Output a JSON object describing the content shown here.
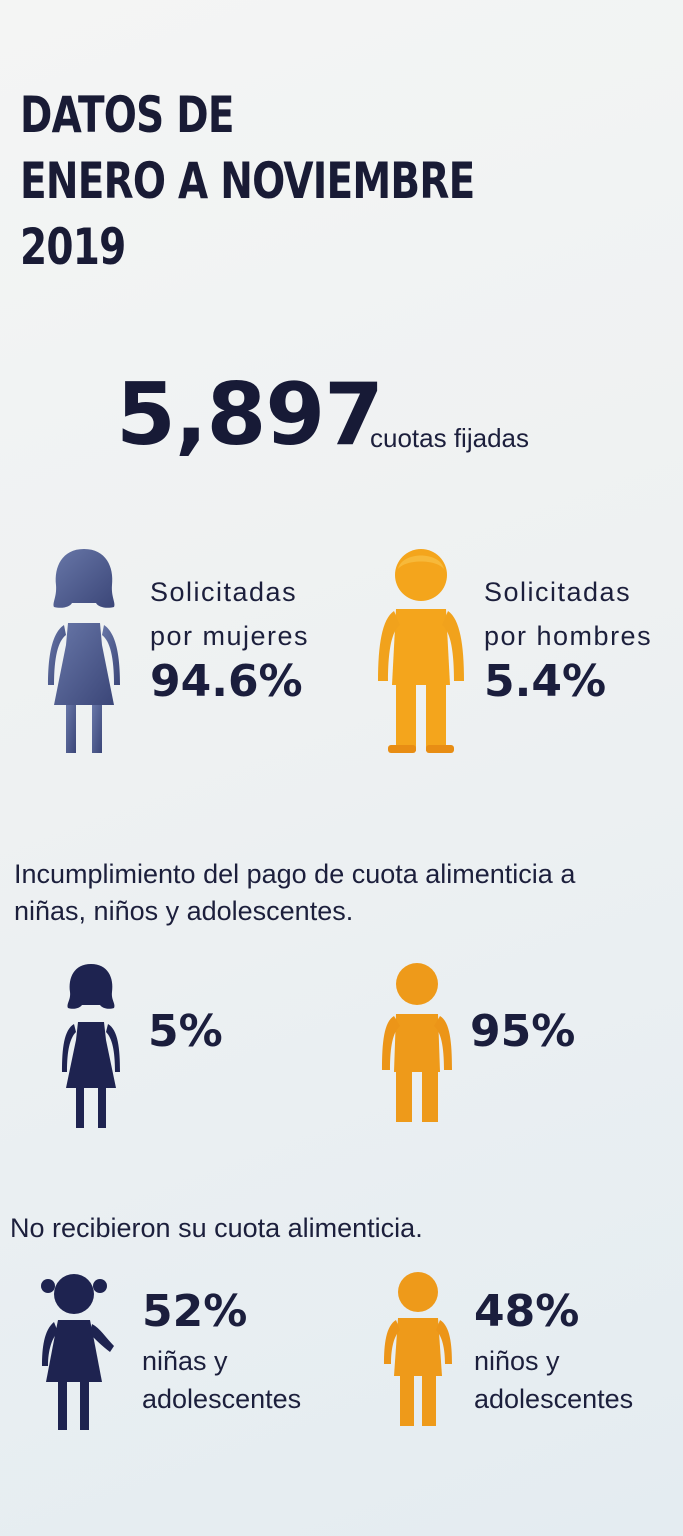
{
  "title": {
    "line1": "DATOS DE",
    "line2": "ENERO A NOVIEMBRE",
    "line3": "2019"
  },
  "headline": {
    "number": "5,897",
    "caption": "cuotas fijadas"
  },
  "requested": {
    "women": {
      "label_line1": "Solicitadas",
      "label_line2": "por mujeres",
      "percent": "94.6%"
    },
    "men": {
      "label_line1": "Solicitadas",
      "label_line2": "por hombres",
      "percent": "5.4%"
    }
  },
  "noncompliance": {
    "text_line1": "Incumplimiento del pago de cuota alimenticia a",
    "text_line2": "niñas, niños y adolescentes.",
    "women_percent": "5%",
    "men_percent": "95%"
  },
  "not_received": {
    "text": "No recibieron su cuota alimenticia.",
    "girls": {
      "percent": "52%",
      "label_line1": "niñas y",
      "label_line2": "adolescentes"
    },
    "boys": {
      "percent": "48%",
      "label_line1": "niños y",
      "label_line2": "adolescentes"
    }
  },
  "colors": {
    "female_figure": "#48578a",
    "female_figure_dark": "#1e2350",
    "male_figure": "#f3a51c",
    "male_figure_dark": "#e88d14",
    "text": "#1b1e3d"
  }
}
